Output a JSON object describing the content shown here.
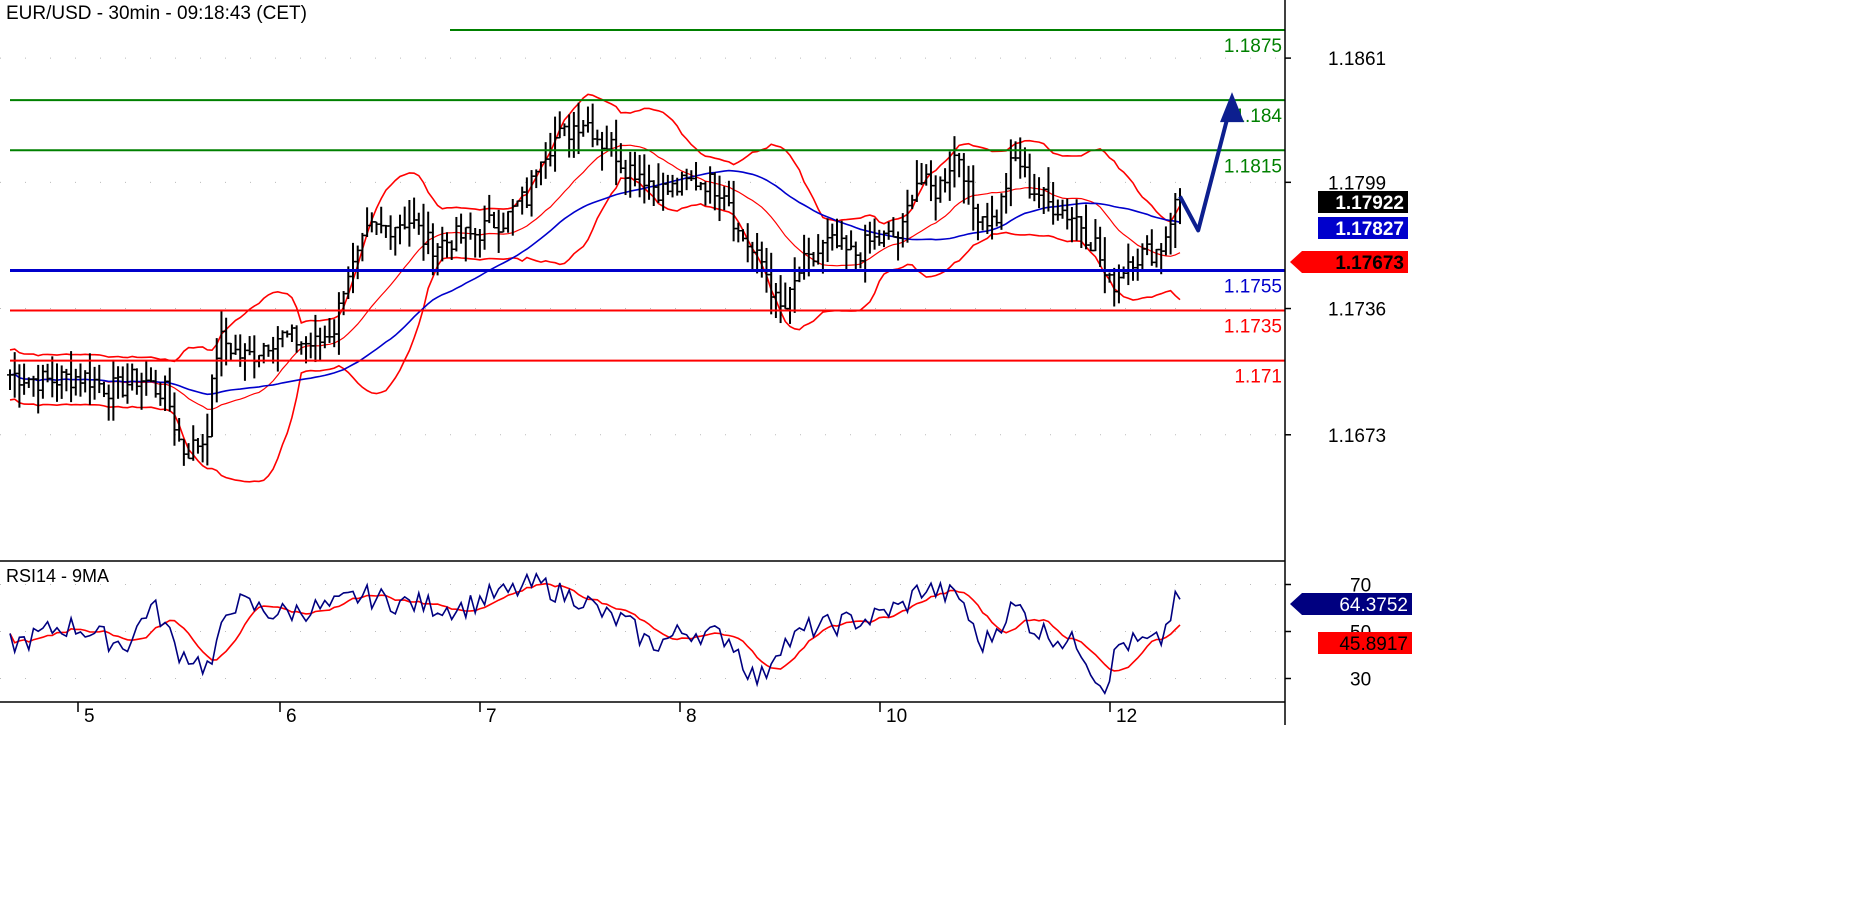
{
  "chart_data": {
    "type": "line",
    "title": "EUR/USD - 30min - 09:18:43 (CET)",
    "instrument": "EUR/USD",
    "timeframe": "30min",
    "x_tick_labels": [
      "5",
      "6",
      "7",
      "8",
      "10",
      "12"
    ],
    "price_axis": {
      "ylim": [
        1.161,
        1.189
      ],
      "tick_labels": [
        "1.1861",
        "1.1799",
        "1.1736",
        "1.1673"
      ],
      "grid": true
    },
    "levels": [
      {
        "label": "1.1875",
        "value": 1.1875,
        "color": "#008000"
      },
      {
        "label": "1.184",
        "value": 1.184,
        "color": "#008000"
      },
      {
        "label": "1.1815",
        "value": 1.1815,
        "color": "#008000"
      },
      {
        "label": "1.1755",
        "value": 1.1755,
        "color": "#0000cc"
      },
      {
        "label": "1.1735",
        "value": 1.1735,
        "color": "#ff0000"
      },
      {
        "label": "1.171",
        "value": 1.171,
        "color": "#ff0000"
      }
    ],
    "price_tags": [
      {
        "label": "1.17922",
        "value": 1.17922,
        "bg": "#000000",
        "fg": "#ffffff"
      },
      {
        "label": "1.17827",
        "value": 1.17827,
        "bg": "#0000cc",
        "fg": "#ffffff"
      },
      {
        "label": "1.17673",
        "value": 1.17673,
        "bg": "#ff0000",
        "fg": "#000000"
      }
    ],
    "forecast_arrow_points": [
      [
        0.0,
        1.1792
      ],
      [
        0.35,
        1.1775
      ],
      [
        1.0,
        1.184
      ]
    ],
    "forecast_color": "#0d1f8f",
    "price_series": {
      "name": "EUR/USD",
      "color": "#000000",
      "knots": [
        [
          0.0,
          1.1703
        ],
        [
          0.03,
          1.17
        ],
        [
          0.06,
          1.1702
        ],
        [
          0.09,
          1.1696
        ],
        [
          0.11,
          1.1701
        ],
        [
          0.13,
          1.1695
        ],
        [
          0.15,
          1.1665
        ],
        [
          0.165,
          1.167
        ],
        [
          0.18,
          1.172
        ],
        [
          0.2,
          1.1712
        ],
        [
          0.23,
          1.1722
        ],
        [
          0.26,
          1.1718
        ],
        [
          0.275,
          1.1725
        ],
        [
          0.29,
          1.1755
        ],
        [
          0.31,
          1.1775
        ],
        [
          0.34,
          1.178
        ],
        [
          0.36,
          1.1768
        ],
        [
          0.39,
          1.1772
        ],
        [
          0.42,
          1.178
        ],
        [
          0.44,
          1.179
        ],
        [
          0.455,
          1.1815
        ],
        [
          0.47,
          1.1822
        ],
        [
          0.49,
          1.183
        ],
        [
          0.51,
          1.1818
        ],
        [
          0.53,
          1.1806
        ],
        [
          0.56,
          1.1795
        ],
        [
          0.59,
          1.18
        ],
        [
          0.61,
          1.1796
        ],
        [
          0.625,
          1.1772
        ],
        [
          0.64,
          1.176
        ],
        [
          0.66,
          1.1735
        ],
        [
          0.68,
          1.1758
        ],
        [
          0.7,
          1.1768
        ],
        [
          0.72,
          1.1763
        ],
        [
          0.74,
          1.177
        ],
        [
          0.76,
          1.1772
        ],
        [
          0.775,
          1.18
        ],
        [
          0.79,
          1.1795
        ],
        [
          0.81,
          1.1813
        ],
        [
          0.825,
          1.1785
        ],
        [
          0.84,
          1.178
        ],
        [
          0.86,
          1.181
        ],
        [
          0.875,
          1.1795
        ],
        [
          0.89,
          1.1788
        ],
        [
          0.91,
          1.1782
        ],
        [
          0.925,
          1.177
        ],
        [
          0.94,
          1.1748
        ],
        [
          0.96,
          1.1762
        ],
        [
          0.98,
          1.1765
        ],
        [
          1.0,
          1.179
        ]
      ]
    },
    "bollinger_bands": {
      "color": "#ff0000",
      "width_pips": 0.0025
    },
    "moving_average": {
      "color": "#0000cc"
    },
    "rsi_panel": {
      "label": "RSI14 - 9MA",
      "ylim": [
        20,
        80
      ],
      "tick_labels": [
        "70",
        "50",
        "30"
      ],
      "rsi_color": "#000080",
      "ma_color": "#ff0000",
      "tags": [
        {
          "label": "64.3752",
          "value": 64.3752,
          "bg": "#000080",
          "fg": "#ffffff"
        },
        {
          "label": "45.8917",
          "value": 45.8917,
          "bg": "#ff0000",
          "fg": "#000000"
        }
      ],
      "rsi_knots": [
        [
          0.0,
          45
        ],
        [
          0.05,
          52
        ],
        [
          0.1,
          45
        ],
        [
          0.12,
          60
        ],
        [
          0.15,
          40
        ],
        [
          0.17,
          35
        ],
        [
          0.19,
          62
        ],
        [
          0.23,
          58
        ],
        [
          0.27,
          60
        ],
        [
          0.3,
          65
        ],
        [
          0.34,
          62
        ],
        [
          0.38,
          60
        ],
        [
          0.42,
          66
        ],
        [
          0.45,
          70
        ],
        [
          0.48,
          65
        ],
        [
          0.52,
          55
        ],
        [
          0.55,
          45
        ],
        [
          0.58,
          50
        ],
        [
          0.61,
          48
        ],
        [
          0.64,
          30
        ],
        [
          0.66,
          45
        ],
        [
          0.69,
          52
        ],
        [
          0.73,
          55
        ],
        [
          0.76,
          60
        ],
        [
          0.78,
          68
        ],
        [
          0.81,
          65
        ],
        [
          0.83,
          45
        ],
        [
          0.86,
          60
        ],
        [
          0.88,
          50
        ],
        [
          0.91,
          45
        ],
        [
          0.935,
          28
        ],
        [
          0.95,
          45
        ],
        [
          0.98,
          45
        ],
        [
          1.0,
          64
        ]
      ]
    }
  }
}
